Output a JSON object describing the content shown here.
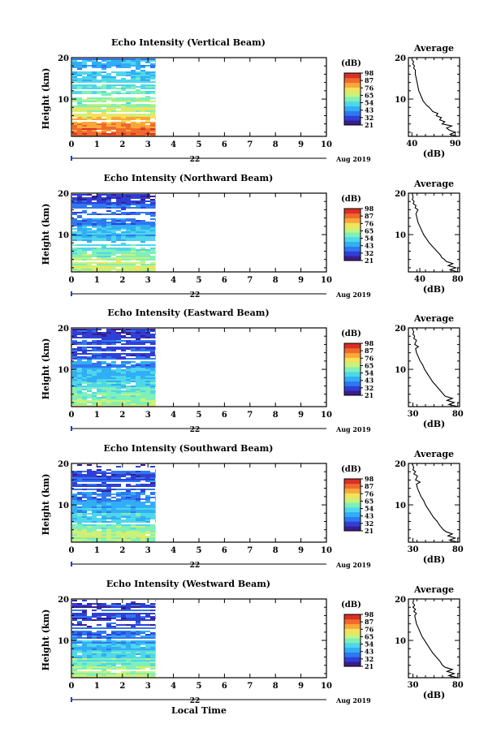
{
  "figure": {
    "xlabel": "Local Time",
    "date_left": "22",
    "date_right": "Aug 2019",
    "cbar_unit": "(dB)",
    "avg_title": "Average",
    "avg_xlabel": "(dB)",
    "ylabel": "Height (km)"
  },
  "colors": {
    "scale": [
      "#3a1d8c",
      "#2f3fd6",
      "#2f78f0",
      "#31aef5",
      "#4fd6ea",
      "#7ef0b8",
      "#c8f27a",
      "#f3e25a",
      "#f9a73a",
      "#f06a2c",
      "#d83027"
    ]
  },
  "chart_data": [
    {
      "type": "heatmap",
      "title": "Echo Intensity (Vertical Beam)",
      "ylabel": "Height (km)",
      "xlabel": "Local Time",
      "x_ticks": [
        "0",
        "1",
        "2",
        "3",
        "4",
        "5",
        "6",
        "7",
        "8",
        "9",
        "10"
      ],
      "y_ticks": [
        "20",
        "10"
      ],
      "xlim": [
        0,
        10
      ],
      "ylim": [
        1,
        20
      ],
      "data_end_hour": 3.3,
      "colorbar": {
        "unit": "(dB)",
        "ticks": [
          "98",
          "87",
          "76",
          "65",
          "54",
          "43",
          "32",
          "21"
        ],
        "range": [
          21,
          98
        ]
      },
      "profile_by_height": [
        [
          1,
          88
        ],
        [
          2,
          90
        ],
        [
          3,
          86
        ],
        [
          4,
          84
        ],
        [
          5,
          78
        ],
        [
          6,
          74
        ],
        [
          7,
          70
        ],
        [
          8,
          66
        ],
        [
          9,
          62
        ],
        [
          10,
          60
        ],
        [
          11,
          57
        ],
        [
          12,
          55
        ],
        [
          13,
          54
        ],
        [
          14,
          53
        ],
        [
          15,
          52
        ],
        [
          16,
          50
        ],
        [
          17,
          48
        ],
        [
          18,
          46
        ],
        [
          19,
          45
        ],
        [
          20,
          44
        ]
      ],
      "average": {
        "title": "Average",
        "xlabel": "(dB)",
        "x_ticks": [
          "40",
          "90"
        ],
        "xlim": [
          36,
          95
        ],
        "y_ticks": [
          "20",
          "10"
        ],
        "profile": [
          [
            1,
            92
          ],
          [
            1.5,
            84
          ],
          [
            2,
            90
          ],
          [
            2.5,
            83
          ],
          [
            3,
            80
          ],
          [
            3.5,
            86
          ],
          [
            4,
            75
          ],
          [
            4.5,
            78
          ],
          [
            5,
            72
          ],
          [
            5.5,
            74
          ],
          [
            6,
            68
          ],
          [
            6.5,
            70
          ],
          [
            7,
            64
          ],
          [
            7.5,
            62
          ],
          [
            8,
            60
          ],
          [
            8.5,
            57
          ],
          [
            9,
            55
          ],
          [
            9.5,
            53
          ],
          [
            10,
            52
          ],
          [
            11,
            50
          ],
          [
            12,
            48
          ],
          [
            13,
            47
          ],
          [
            14,
            46
          ],
          [
            15,
            45
          ],
          [
            16,
            44
          ],
          [
            17,
            44
          ],
          [
            17.5,
            42
          ],
          [
            18,
            43
          ],
          [
            18.5,
            41
          ],
          [
            19,
            42
          ],
          [
            19.5,
            40
          ],
          [
            20,
            40
          ]
        ]
      }
    },
    {
      "type": "heatmap",
      "title": "Echo Intensity (Northward Beam)",
      "ylabel": "Height (km)",
      "xlabel": "Local Time",
      "x_ticks": [
        "0",
        "1",
        "2",
        "3",
        "4",
        "5",
        "6",
        "7",
        "8",
        "9",
        "10"
      ],
      "y_ticks": [
        "20",
        "10"
      ],
      "xlim": [
        0,
        10
      ],
      "ylim": [
        1,
        20
      ],
      "data_end_hour": 3.3,
      "colorbar": {
        "unit": "(dB)",
        "ticks": [
          "98",
          "87",
          "76",
          "65",
          "54",
          "43",
          "32",
          "21"
        ],
        "range": [
          21,
          98
        ]
      },
      "profile_by_height": [
        [
          1,
          70
        ],
        [
          2,
          68
        ],
        [
          3,
          65
        ],
        [
          4,
          63
        ],
        [
          5,
          60
        ],
        [
          6,
          58
        ],
        [
          7,
          55
        ],
        [
          8,
          52
        ],
        [
          9,
          50
        ],
        [
          10,
          47
        ],
        [
          11,
          45
        ],
        [
          12,
          42
        ],
        [
          13,
          40
        ],
        [
          14,
          38
        ],
        [
          15,
          37
        ],
        [
          16,
          36
        ],
        [
          17,
          37
        ],
        [
          18,
          33
        ],
        [
          19,
          32
        ],
        [
          20,
          30
        ]
      ],
      "average": {
        "title": "Average",
        "xlabel": "(dB)",
        "x_ticks": [
          "40",
          "80"
        ],
        "xlim": [
          28,
          82
        ],
        "y_ticks": [
          "20",
          "10"
        ],
        "profile": [
          [
            1,
            80
          ],
          [
            1.5,
            72
          ],
          [
            2,
            78
          ],
          [
            2.5,
            70
          ],
          [
            3,
            75
          ],
          [
            3.5,
            68
          ],
          [
            4,
            66
          ],
          [
            4.5,
            63
          ],
          [
            5,
            62
          ],
          [
            6,
            58
          ],
          [
            7,
            54
          ],
          [
            8,
            50
          ],
          [
            9,
            47
          ],
          [
            10,
            44
          ],
          [
            11,
            42
          ],
          [
            12,
            40
          ],
          [
            13,
            38
          ],
          [
            14,
            37
          ],
          [
            15,
            36
          ],
          [
            16,
            38
          ],
          [
            16.5,
            35
          ],
          [
            17,
            36
          ],
          [
            17.5,
            33
          ],
          [
            18,
            34
          ],
          [
            18.5,
            32
          ],
          [
            19,
            33
          ],
          [
            20,
            32
          ]
        ]
      }
    },
    {
      "type": "heatmap",
      "title": "Echo Intensity (Eastward Beam)",
      "ylabel": "Height (km)",
      "xlabel": "Local Time",
      "x_ticks": [
        "0",
        "1",
        "2",
        "3",
        "4",
        "5",
        "6",
        "7",
        "8",
        "9",
        "10"
      ],
      "y_ticks": [
        "20",
        "10"
      ],
      "xlim": [
        0,
        10
      ],
      "ylim": [
        1,
        20
      ],
      "data_end_hour": 3.3,
      "colorbar": {
        "unit": "(dB)",
        "ticks": [
          "98",
          "87",
          "76",
          "65",
          "54",
          "43",
          "32",
          "21"
        ],
        "range": [
          21,
          98
        ]
      },
      "profile_by_height": [
        [
          1,
          68
        ],
        [
          2,
          66
        ],
        [
          3,
          64
        ],
        [
          4,
          61
        ],
        [
          5,
          58
        ],
        [
          6,
          56
        ],
        [
          7,
          53
        ],
        [
          8,
          50
        ],
        [
          9,
          48
        ],
        [
          10,
          46
        ],
        [
          11,
          43
        ],
        [
          12,
          40
        ],
        [
          13,
          37
        ],
        [
          14,
          35
        ],
        [
          15,
          34
        ],
        [
          16,
          33
        ],
        [
          17,
          34
        ],
        [
          18,
          32
        ],
        [
          19,
          31
        ],
        [
          20,
          30
        ]
      ],
      "average": {
        "title": "Average",
        "xlabel": "(dB)",
        "x_ticks": [
          "30",
          "80"
        ],
        "xlim": [
          25,
          82
        ],
        "y_ticks": [
          "20",
          "10"
        ],
        "profile": [
          [
            1,
            80
          ],
          [
            1.5,
            70
          ],
          [
            2,
            76
          ],
          [
            2.5,
            68
          ],
          [
            3,
            74
          ],
          [
            3.5,
            66
          ],
          [
            4,
            64
          ],
          [
            5,
            60
          ],
          [
            6,
            56
          ],
          [
            7,
            52
          ],
          [
            8,
            49
          ],
          [
            9,
            46
          ],
          [
            10,
            43
          ],
          [
            11,
            41
          ],
          [
            12,
            38
          ],
          [
            13,
            36
          ],
          [
            14,
            34
          ],
          [
            15,
            33
          ],
          [
            15.5,
            36
          ],
          [
            16,
            32
          ],
          [
            17,
            34
          ],
          [
            17.5,
            31
          ],
          [
            18,
            32
          ],
          [
            18.5,
            30
          ],
          [
            19,
            31
          ],
          [
            20,
            29
          ]
        ]
      }
    },
    {
      "type": "heatmap",
      "title": "Echo Intensity (Southward Beam)",
      "ylabel": "Height (km)",
      "xlabel": "Local Time",
      "x_ticks": [
        "0",
        "1",
        "2",
        "3",
        "4",
        "5",
        "6",
        "7",
        "8",
        "9",
        "10"
      ],
      "y_ticks": [
        "20",
        "10"
      ],
      "xlim": [
        0,
        10
      ],
      "ylim": [
        1,
        20
      ],
      "data_end_hour": 3.3,
      "colorbar": {
        "unit": "(dB)",
        "ticks": [
          "98",
          "87",
          "76",
          "65",
          "54",
          "43",
          "32",
          "21"
        ],
        "range": [
          21,
          98
        ]
      },
      "profile_by_height": [
        [
          1,
          68
        ],
        [
          2,
          66
        ],
        [
          3,
          64
        ],
        [
          4,
          61
        ],
        [
          5,
          58
        ],
        [
          6,
          55
        ],
        [
          7,
          52
        ],
        [
          8,
          50
        ],
        [
          9,
          47
        ],
        [
          10,
          45
        ],
        [
          11,
          42
        ],
        [
          12,
          40
        ],
        [
          13,
          37
        ],
        [
          14,
          35
        ],
        [
          15,
          33
        ],
        [
          16,
          36
        ],
        [
          17,
          34
        ],
        [
          18,
          31
        ],
        [
          19,
          31
        ],
        [
          20,
          30
        ]
      ],
      "average": {
        "title": "Average",
        "xlabel": "(dB)",
        "x_ticks": [
          "30",
          "80"
        ],
        "xlim": [
          25,
          82
        ],
        "y_ticks": [
          "20",
          "10"
        ],
        "profile": [
          [
            1,
            80
          ],
          [
            1.5,
            71
          ],
          [
            2,
            77
          ],
          [
            2.5,
            69
          ],
          [
            3,
            74
          ],
          [
            3.5,
            67
          ],
          [
            4,
            64
          ],
          [
            5,
            60
          ],
          [
            6,
            57
          ],
          [
            7,
            53
          ],
          [
            8,
            50
          ],
          [
            9,
            47
          ],
          [
            10,
            44
          ],
          [
            11,
            42
          ],
          [
            12,
            39
          ],
          [
            13,
            37
          ],
          [
            14,
            35
          ],
          [
            15,
            34
          ],
          [
            15.5,
            38
          ],
          [
            16,
            33
          ],
          [
            17,
            35
          ],
          [
            17.5,
            31
          ],
          [
            18,
            33
          ],
          [
            18.5,
            30
          ],
          [
            19,
            31
          ],
          [
            20,
            29
          ]
        ]
      }
    },
    {
      "type": "heatmap",
      "title": "Echo Intensity (Westward Beam)",
      "ylabel": "Height (km)",
      "xlabel": "Local Time",
      "x_ticks": [
        "0",
        "1",
        "2",
        "3",
        "4",
        "5",
        "6",
        "7",
        "8",
        "9",
        "10"
      ],
      "y_ticks": [
        "20",
        "10"
      ],
      "xlim": [
        0,
        10
      ],
      "ylim": [
        1,
        20
      ],
      "data_end_hour": 3.3,
      "colorbar": {
        "unit": "(dB)",
        "ticks": [
          "98",
          "87",
          "76",
          "65",
          "54",
          "43",
          "32",
          "21"
        ],
        "range": [
          21,
          98
        ]
      },
      "profile_by_height": [
        [
          1,
          67
        ],
        [
          2,
          65
        ],
        [
          3,
          63
        ],
        [
          4,
          60
        ],
        [
          5,
          58
        ],
        [
          6,
          55
        ],
        [
          7,
          52
        ],
        [
          8,
          49
        ],
        [
          9,
          47
        ],
        [
          10,
          44
        ],
        [
          11,
          41
        ],
        [
          12,
          38
        ],
        [
          13,
          36
        ],
        [
          14,
          34
        ],
        [
          15,
          33
        ],
        [
          16,
          32
        ],
        [
          17,
          33
        ],
        [
          18,
          31
        ],
        [
          19,
          32
        ],
        [
          20,
          30
        ]
      ],
      "average": {
        "title": "Average",
        "xlabel": "(dB)",
        "x_ticks": [
          "30",
          "80"
        ],
        "xlim": [
          25,
          82
        ],
        "y_ticks": [
          "20",
          "10"
        ],
        "profile": [
          [
            1,
            80
          ],
          [
            1.5,
            70
          ],
          [
            2,
            76
          ],
          [
            2.5,
            68
          ],
          [
            3,
            74
          ],
          [
            3.5,
            66
          ],
          [
            4,
            63
          ],
          [
            5,
            60
          ],
          [
            6,
            56
          ],
          [
            7,
            52
          ],
          [
            8,
            49
          ],
          [
            9,
            46
          ],
          [
            10,
            43
          ],
          [
            11,
            40
          ],
          [
            12,
            38
          ],
          [
            13,
            36
          ],
          [
            14,
            34
          ],
          [
            15,
            33
          ],
          [
            16,
            32
          ],
          [
            16.5,
            34
          ],
          [
            17,
            31
          ],
          [
            17.5,
            33
          ],
          [
            18,
            30
          ],
          [
            18.5,
            32
          ],
          [
            19,
            30
          ],
          [
            20,
            31
          ]
        ]
      }
    }
  ]
}
